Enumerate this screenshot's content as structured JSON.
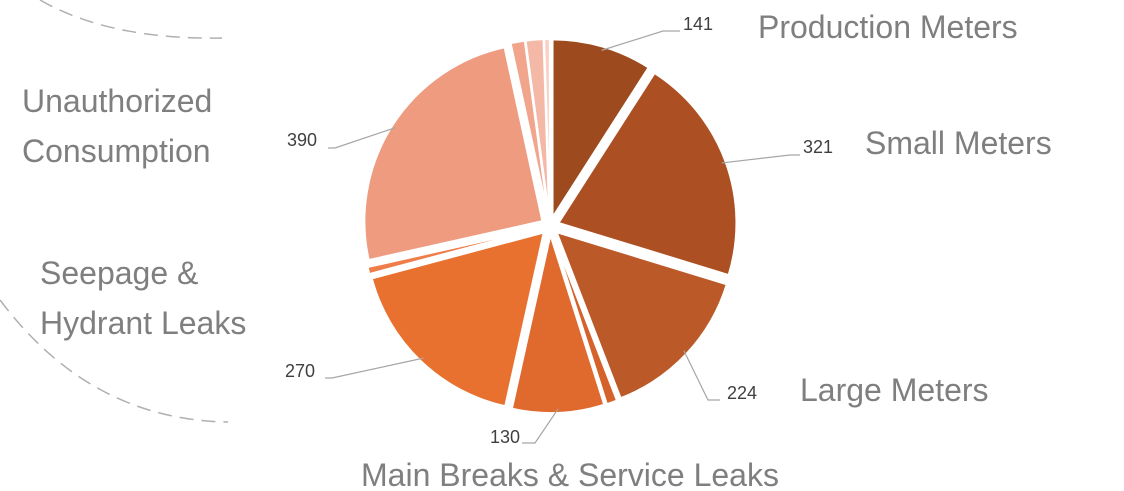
{
  "chart_data": {
    "type": "pie",
    "categories": [
      "Production Meters",
      "Small Meters",
      "Large Meters",
      null,
      "Main Breaks & Service Leaks",
      "Seepage & Hydrant Leaks",
      null,
      "Unauthorized Consumption",
      null,
      null,
      null
    ],
    "values": [
      141,
      321,
      224,
      15,
      130,
      270,
      10,
      390,
      20,
      25,
      8
    ],
    "colors": [
      "#9c4a1e",
      "#ac5024",
      "#bb5a28",
      "#d4622a",
      "#e0692e",
      "#e8712f",
      "#ee7d4a",
      "#ee9b80",
      "#f0a58c",
      "#f4b9a6",
      "#f8d0c4"
    ]
  }
}
